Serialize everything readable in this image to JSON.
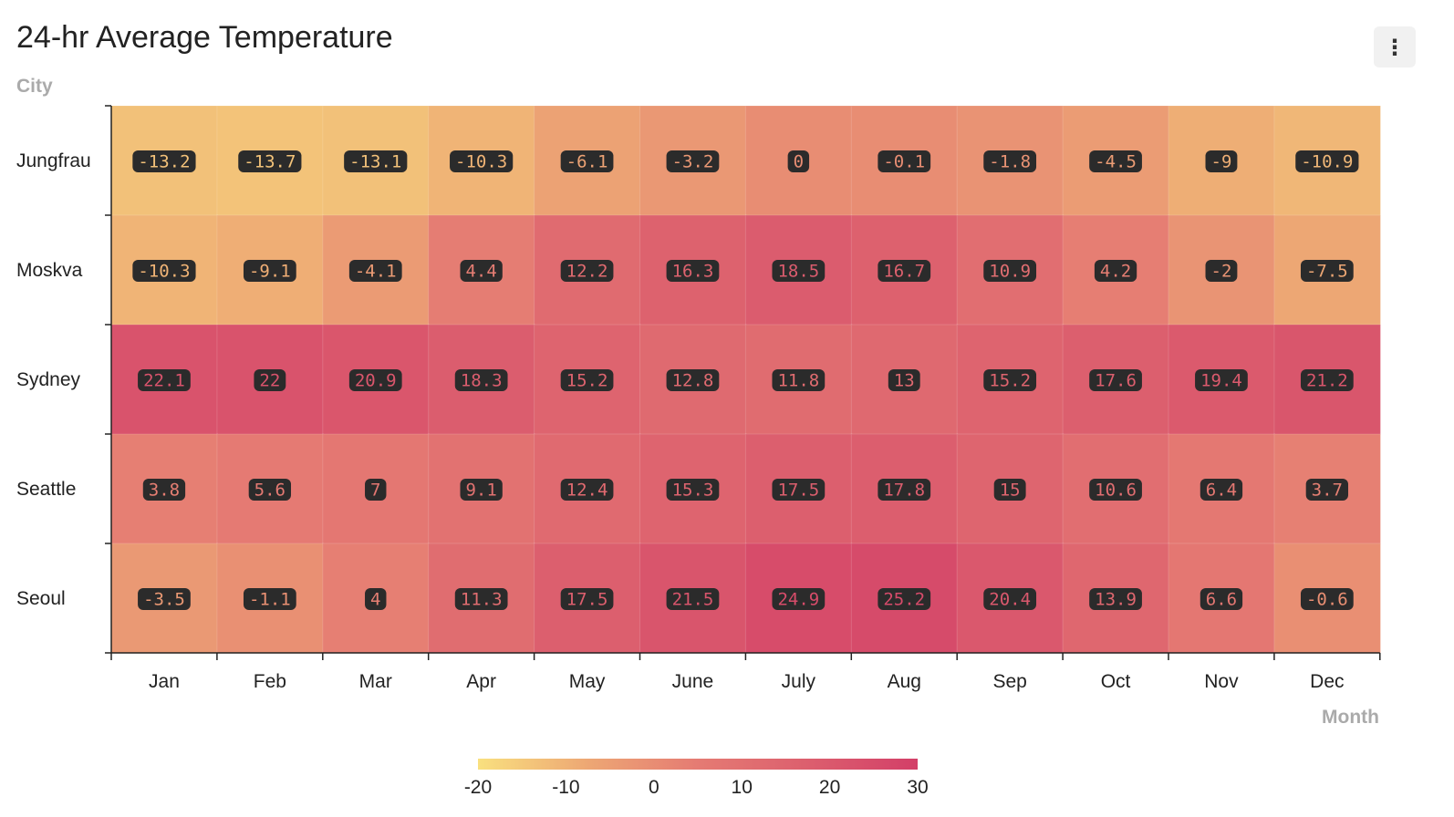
{
  "header": {
    "title": "24-hr Average Temperature",
    "menu_icon": "more-vertical-icon"
  },
  "chart_data": {
    "type": "heatmap",
    "title": "24-hr Average Temperature",
    "xlabel": "Month",
    "ylabel": "City",
    "x_categories": [
      "Jan",
      "Feb",
      "Mar",
      "Apr",
      "May",
      "June",
      "July",
      "Aug",
      "Sep",
      "Oct",
      "Nov",
      "Dec"
    ],
    "y_categories": [
      "Jungfrau",
      "Moskva",
      "Sydney",
      "Seattle",
      "Seoul"
    ],
    "values": [
      [
        -13.2,
        -13.7,
        -13.1,
        -10.3,
        -6.1,
        -3.2,
        0,
        -0.1,
        -1.8,
        -4.5,
        -9,
        -10.9
      ],
      [
        -10.3,
        -9.1,
        -4.1,
        4.4,
        12.2,
        16.3,
        18.5,
        16.7,
        10.9,
        4.2,
        -2,
        -7.5
      ],
      [
        22.1,
        22,
        20.9,
        18.3,
        15.2,
        12.8,
        11.8,
        13,
        15.2,
        17.6,
        19.4,
        21.2
      ],
      [
        3.8,
        5.6,
        7,
        9.1,
        12.4,
        15.3,
        17.5,
        17.8,
        15,
        10.6,
        6.4,
        3.7
      ],
      [
        -3.5,
        -1.1,
        4,
        11.3,
        17.5,
        21.5,
        24.9,
        25.2,
        20.4,
        13.9,
        6.6,
        -0.6
      ]
    ],
    "color_scale": {
      "min": -20,
      "max": 30,
      "ticks": [
        -20,
        -10,
        0,
        10,
        20,
        30
      ],
      "colors": [
        "#f9e07f",
        "#eda774",
        "#e57b73",
        "#dc5f6e",
        "#d33f68"
      ]
    },
    "grid": false,
    "legend": "bottom-center",
    "label_box_color": "#2b2b2b"
  }
}
